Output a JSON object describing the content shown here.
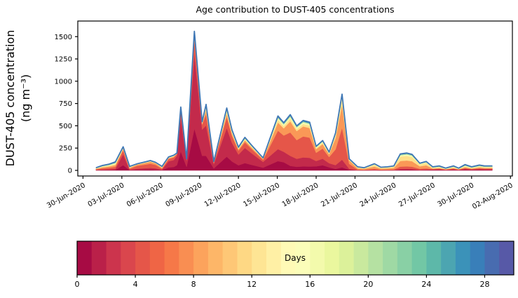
{
  "chart_data": {
    "type": "area",
    "title": "Age contribution to DUST-405 concentrations",
    "ylabel_line1": "DUST-405 concentration",
    "ylabel_line2": "(ng m⁻³)",
    "x_tick_labels": [
      "30-Jun-2020",
      "03-Jul-2020",
      "06-Jul-2020",
      "09-Jul-2020",
      "12-Jul-2020",
      "15-Jul-2020",
      "18-Jul-2020",
      "21-Jul-2020",
      "24-Jul-2020",
      "27-Jul-2020",
      "30-Jul-2020",
      "02-Aug-2020"
    ],
    "x_tick_days": [
      0,
      3,
      6,
      9,
      12,
      15,
      18,
      21,
      24,
      27,
      30,
      33
    ],
    "y_ticks": [
      0,
      250,
      500,
      750,
      1000,
      1250,
      1500
    ],
    "xlim_days": [
      -0.4,
      33.15
    ],
    "ylim": [
      -63,
      1675
    ],
    "age_bins_days": [
      [
        0,
        1
      ],
      [
        1,
        3
      ],
      [
        3,
        6
      ],
      [
        6,
        10
      ],
      [
        10,
        14
      ],
      [
        14,
        18
      ],
      [
        18,
        24
      ],
      [
        24,
        30
      ]
    ],
    "profiles": {
      "mixed_low": [
        0.06,
        0.12,
        0.24,
        0.21,
        0.13,
        0.08,
        0.09,
        0.07
      ],
      "crimson": [
        0.22,
        0.46,
        0.17,
        0.06,
        0.03,
        0.02,
        0.02,
        0.02
      ],
      "fresh": [
        0.3,
        0.54,
        0.1,
        0.025,
        0.012,
        0.009,
        0.007,
        0.007
      ],
      "orange": [
        0.08,
        0.18,
        0.42,
        0.2,
        0.05,
        0.03,
        0.02,
        0.02
      ],
      "orange_red": [
        0.17,
        0.22,
        0.34,
        0.15,
        0.05,
        0.03,
        0.02,
        0.02
      ],
      "orange_spike": [
        0.04,
        0.1,
        0.42,
        0.3,
        0.08,
        0.03,
        0.02,
        0.01
      ],
      "yellow": [
        0.03,
        0.06,
        0.14,
        0.34,
        0.27,
        0.07,
        0.05,
        0.04
      ],
      "old_tail": [
        0.1,
        0.16,
        0.13,
        0.16,
        0.15,
        0.1,
        0.11,
        0.09
      ]
    },
    "points": [
      [
        1.0,
        30,
        "mixed_low"
      ],
      [
        1.5,
        55,
        "mixed_low"
      ],
      [
        2.0,
        70,
        "mixed_low"
      ],
      [
        2.5,
        95,
        "mixed_low"
      ],
      [
        3.1,
        265,
        "crimson"
      ],
      [
        3.6,
        45,
        "mixed_low"
      ],
      [
        4.2,
        75,
        "orange"
      ],
      [
        4.8,
        95,
        "orange"
      ],
      [
        5.2,
        110,
        "orange"
      ],
      [
        5.6,
        90,
        "orange"
      ],
      [
        6.1,
        45,
        "mixed_low"
      ],
      [
        6.6,
        150,
        "crimson"
      ],
      [
        7.0,
        170,
        "crimson"
      ],
      [
        7.25,
        195,
        "fresh"
      ],
      [
        7.55,
        710,
        "fresh"
      ],
      [
        8.0,
        130,
        "fresh"
      ],
      [
        8.6,
        1560,
        "fresh"
      ],
      [
        9.2,
        545,
        "fresh"
      ],
      [
        9.5,
        740,
        "crimson"
      ],
      [
        10.1,
        100,
        "crimson"
      ],
      [
        11.1,
        700,
        "crimson"
      ],
      [
        11.5,
        455,
        "crimson"
      ],
      [
        12.0,
        260,
        "crimson"
      ],
      [
        12.5,
        370,
        "crimson"
      ],
      [
        13.0,
        285,
        "crimson"
      ],
      [
        13.9,
        140,
        "crimson"
      ],
      [
        15.05,
        610,
        "orange_red"
      ],
      [
        15.5,
        535,
        "orange_red"
      ],
      [
        16.0,
        625,
        "orange"
      ],
      [
        16.5,
        500,
        "orange"
      ],
      [
        17.0,
        560,
        "orange"
      ],
      [
        17.5,
        540,
        "orange"
      ],
      [
        18.0,
        270,
        "orange_red"
      ],
      [
        18.5,
        335,
        "orange_red"
      ],
      [
        19.0,
        205,
        "orange_red"
      ],
      [
        19.5,
        420,
        "orange_spike"
      ],
      [
        20.0,
        855,
        "orange_spike"
      ],
      [
        20.55,
        130,
        "orange_spike"
      ],
      [
        21.2,
        40,
        "yellow"
      ],
      [
        21.7,
        30,
        "yellow"
      ],
      [
        22.5,
        75,
        "yellow"
      ],
      [
        23.0,
        35,
        "yellow"
      ],
      [
        23.5,
        40,
        "yellow"
      ],
      [
        24.0,
        50,
        "yellow"
      ],
      [
        24.5,
        185,
        "yellow"
      ],
      [
        25.0,
        195,
        "yellow"
      ],
      [
        25.4,
        180,
        "yellow"
      ],
      [
        26.0,
        80,
        "yellow"
      ],
      [
        26.5,
        100,
        "yellow"
      ],
      [
        27.0,
        40,
        "old_tail"
      ],
      [
        27.5,
        50,
        "old_tail"
      ],
      [
        28.0,
        25,
        "old_tail"
      ],
      [
        28.6,
        50,
        "old_tail"
      ],
      [
        29.0,
        25,
        "old_tail"
      ],
      [
        29.5,
        65,
        "old_tail"
      ],
      [
        30.0,
        40,
        "old_tail"
      ],
      [
        30.6,
        60,
        "old_tail"
      ],
      [
        31.0,
        50,
        "old_tail"
      ],
      [
        31.6,
        50,
        "old_tail"
      ]
    ],
    "colormap_anchors": [
      "#9e0142",
      "#d53e4f",
      "#f46d43",
      "#fdae61",
      "#fee08b",
      "#ffffbf",
      "#e6f598",
      "#abdda4",
      "#66c2a5",
      "#3288bd",
      "#5e4fa2"
    ],
    "colorbar": {
      "label": "Days",
      "ticks": [
        0,
        4,
        8,
        12,
        16,
        20,
        24,
        28
      ],
      "range": [
        0,
        30
      ],
      "segments": 30
    },
    "frame_color": "#000000"
  }
}
